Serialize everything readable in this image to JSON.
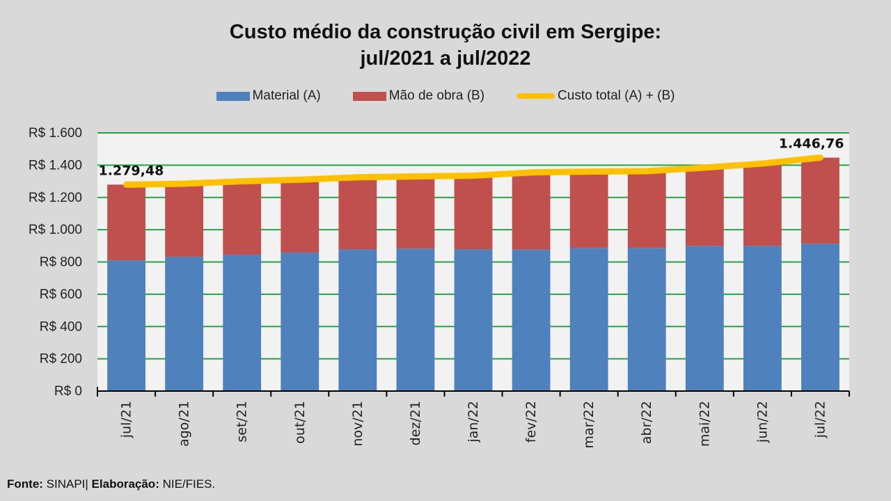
{
  "chart_data": {
    "type": "bar",
    "stacked": true,
    "title": "Custo médio da construção civil em Sergipe:",
    "subtitle": "jul/2021 a jul/2022",
    "xlabel": "",
    "ylabel": "",
    "ylim": [
      0,
      1600
    ],
    "y_step": 200,
    "y_tick_labels": [
      "R$ 0",
      "R$ 200",
      "R$ 400",
      "R$ 600",
      "R$ 800",
      "R$ 1.000",
      "R$ 1.200",
      "R$ 1.400",
      "R$ 1.600"
    ],
    "grid": true,
    "legend_position": "top",
    "categories": [
      "jul/21",
      "ago/21",
      "set/21",
      "out/21",
      "nov/21",
      "dez/21",
      "jan/22",
      "fev/22",
      "mar/22",
      "abr/22",
      "mai/22",
      "jun/22",
      "jul/22"
    ],
    "series": [
      {
        "name": "Material (A)",
        "type": "bar",
        "color": "#4f81bd",
        "values": [
          810,
          832,
          845,
          858,
          878,
          883,
          878,
          877,
          887,
          887,
          900,
          900,
          913
        ]
      },
      {
        "name": "Mão de obra (B)",
        "type": "bar",
        "color": "#c0504d",
        "values": [
          469.48,
          453,
          455,
          452,
          447,
          447,
          457,
          478,
          473,
          476,
          485,
          510,
          533.76
        ]
      },
      {
        "name": "Custo total (A) + (B)",
        "type": "line",
        "color": "#ffc000",
        "values": [
          1279.48,
          1285,
          1300,
          1310,
          1325,
          1330,
          1335,
          1355,
          1360,
          1363,
          1385,
          1410,
          1446.76
        ]
      }
    ],
    "annotations": [
      {
        "category": "jul/21",
        "text": "1.279,48"
      },
      {
        "category": "jul/22",
        "text": "1.446,76"
      }
    ]
  },
  "colors": {
    "background": "#d9d9d9",
    "plot_background": "#f2f2f2",
    "gridline": "#22a345",
    "material": "#4f81bd",
    "labor": "#c0504d",
    "total": "#ffc000"
  },
  "footer": {
    "source_label": "Fonte:",
    "source_value": " SINAPI| ",
    "credit_label": "Elaboração:",
    "credit_value": " NIE/FIES."
  }
}
